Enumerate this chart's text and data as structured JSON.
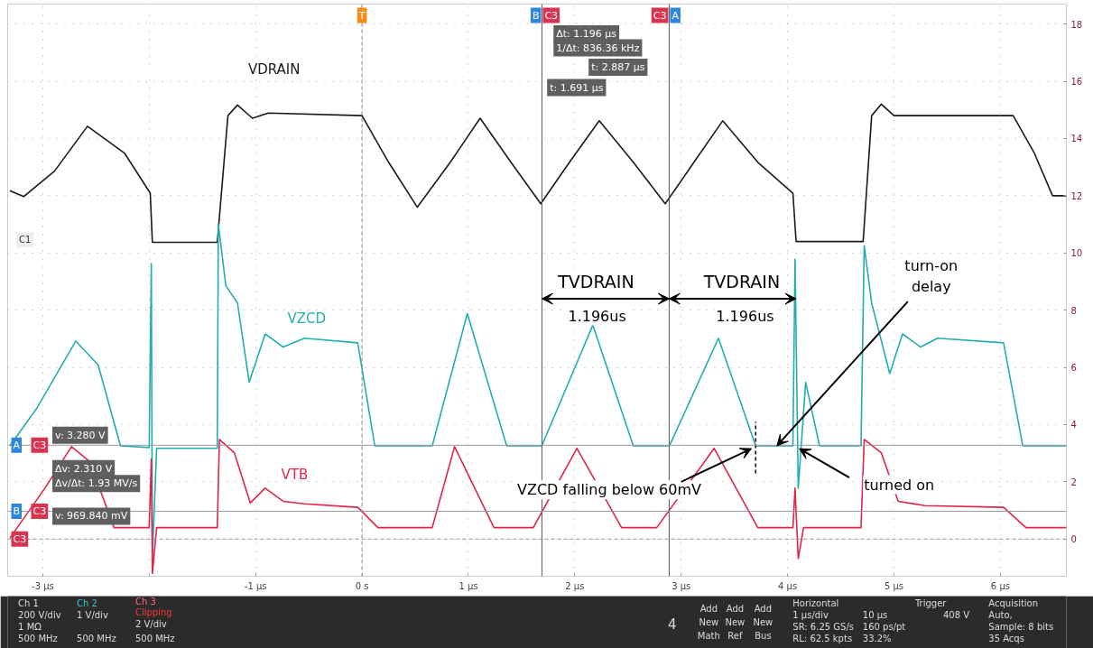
{
  "chart_data": {
    "type": "line",
    "xlim": [
      -3.33,
      6.62
    ],
    "ylim": [
      -1.3,
      18.7
    ],
    "xticks": [
      {
        "value": -3,
        "label": "-3 µs"
      },
      {
        "value": -2,
        "label": null
      },
      {
        "value": -1,
        "label": "-1 µs"
      },
      {
        "value": 0,
        "label": "0 s"
      },
      {
        "value": 1,
        "label": "1 µs"
      },
      {
        "value": 2,
        "label": "2 µs"
      },
      {
        "value": 3,
        "label": "3 µs"
      },
      {
        "value": 4,
        "label": "4 µs"
      },
      {
        "value": 5,
        "label": "5 µs"
      },
      {
        "value": 6,
        "label": "6 µs"
      }
    ],
    "yticks": [
      0,
      2,
      4,
      6,
      8,
      10,
      12,
      14,
      16,
      18
    ],
    "grid": true,
    "series": [
      {
        "name": "VDRAIN",
        "color": "#1a1a1a",
        "x": [
          -3.31,
          -3.18,
          -2.89,
          -2.58,
          -2.23,
          -1.99,
          -1.97,
          -1.36,
          -1.26,
          -1.17,
          -1.03,
          -0.88,
          0,
          0.25,
          0.52,
          0.83,
          1.11,
          1.4,
          1.68,
          1.95,
          2.23,
          2.55,
          2.85,
          3.12,
          3.39,
          3.72,
          4.05,
          4.08,
          4.71,
          4.79,
          4.88,
          5.0,
          6.12,
          6.32,
          6.49,
          6.62
        ],
        "values": [
          12.18,
          11.97,
          12.86,
          14.43,
          13.48,
          12.09,
          10.37,
          10.37,
          14.8,
          15.17,
          14.71,
          14.89,
          14.8,
          13.17,
          11.6,
          13.17,
          14.71,
          13.17,
          11.72,
          13.17,
          14.62,
          13.17,
          11.72,
          13.17,
          14.62,
          13.17,
          12.09,
          10.4,
          10.4,
          14.8,
          15.2,
          14.8,
          14.8,
          13.48,
          12.0,
          12.0
        ]
      },
      {
        "name": "VZCD",
        "color": "#22aeb0",
        "x": [
          -3.31,
          -3.06,
          -2.69,
          -2.48,
          -2.27,
          -2.0,
          -1.98,
          -1.97,
          -1.93,
          -1.36,
          -1.35,
          -1.28,
          -1.17,
          -1.06,
          -0.91,
          -0.74,
          -0.54,
          -0.04,
          0.12,
          0.66,
          0.99,
          1.36,
          1.69,
          2.17,
          2.55,
          2.89,
          3.35,
          3.7,
          4.05,
          4.07,
          4.1,
          4.17,
          4.3,
          4.69,
          4.72,
          4.79,
          4.96,
          5.08,
          5.25,
          5.41,
          6.03,
          6.21,
          6.62
        ],
        "values": [
          3.26,
          4.55,
          6.92,
          6.09,
          3.26,
          3.2,
          9.63,
          -0.68,
          3.17,
          3.17,
          11.02,
          8.86,
          8.25,
          5.48,
          7.17,
          6.71,
          7.02,
          6.86,
          3.26,
          3.26,
          7.88,
          3.26,
          3.26,
          7.48,
          3.26,
          3.26,
          7.02,
          3.26,
          3.26,
          9.78,
          1.78,
          5.48,
          3.26,
          3.26,
          10.25,
          8.25,
          5.78,
          7.17,
          6.71,
          7.02,
          6.86,
          3.26,
          3.26
        ]
      },
      {
        "name": "VTB",
        "color": "#e0244a",
        "x": [
          -3.31,
          -2.98,
          -2.73,
          -2.56,
          -2.33,
          -2.0,
          -1.98,
          -1.97,
          -1.93,
          -1.36,
          -1.34,
          -1.2,
          -1.05,
          -0.91,
          -0.74,
          -0.54,
          -0.04,
          0.15,
          0.66,
          0.87,
          1.24,
          1.61,
          2.02,
          2.44,
          2.77,
          3.31,
          3.72,
          4.05,
          4.07,
          4.1,
          4.15,
          4.69,
          4.72,
          4.88,
          5.04,
          5.29,
          6.03,
          6.24,
          6.62
        ],
        "values": [
          0.03,
          1.78,
          3.23,
          2.71,
          0.4,
          0.4,
          2.8,
          -1.2,
          0.4,
          0.4,
          3.48,
          3.02,
          1.26,
          1.78,
          1.32,
          1.23,
          1.11,
          0.4,
          0.4,
          3.23,
          0.4,
          0.4,
          3.17,
          0.4,
          0.4,
          3.17,
          0.4,
          0.4,
          1.78,
          -0.68,
          0.4,
          0.4,
          3.48,
          3.02,
          1.32,
          1.17,
          1.11,
          0.4,
          0.4
        ]
      }
    ],
    "ref_lines": [
      {
        "axis": "x",
        "value": 1.691,
        "label": "B C3",
        "color": "#555555"
      },
      {
        "axis": "x",
        "value": 2.887,
        "label": "C3 A",
        "color": "#555555"
      },
      {
        "axis": "y",
        "value": 3.28,
        "label": "A C3",
        "color": "#999999"
      },
      {
        "axis": "y",
        "value": 0.96984,
        "label": "B C3",
        "color": "#999999"
      },
      {
        "axis": "x",
        "value": 0,
        "label": "T",
        "color": "#888888",
        "line_style": "dashed"
      },
      {
        "axis": "y",
        "value": 0,
        "label": "C3",
        "color": "#999999",
        "line_style": "dashed"
      },
      {
        "axis": "x",
        "value": 3.7,
        "color": "#000000",
        "line_style": "dashed"
      }
    ],
    "annotations": [
      "Δt: 1.196 µs",
      "1/Δt: 836.36 kHz",
      "t: 2.887 µs",
      "t: 1.691 µs",
      "v: 3.280 V",
      "Δv: 2.310 V",
      "Δv/Δt: 1.93 MV/s",
      "v: 969.840 mV",
      "C1",
      "TVDRAIN",
      "1.196us",
      "TVDRAIN",
      "1.196us",
      {
        "text": "turn-on delay",
        "x": 3.9,
        "y": 3.26
      },
      {
        "text": "VZCD falling below 60mV",
        "x": 3.7,
        "y": 3.26
      },
      {
        "text": "turned on",
        "x": 4.08,
        "y": 3.26
      },
      "Ch 1",
      "200 V/div",
      "1 MΩ",
      "500 MHz",
      "Ch 2",
      "1 V/div",
      "500 MHz",
      "Ch 3",
      "Clipping",
      "2 V/div",
      "500 MHz",
      "4",
      "Add",
      "New",
      "Math",
      "Add",
      "New",
      "Ref",
      "Add",
      "New",
      "Bus",
      "Horizontal",
      "1 µs/div",
      "10 µs",
      "SR: 6.25 GS/s",
      "160 ps/pt",
      "RL: 62.5 kpts",
      "33.2%",
      "Trigger",
      "408 V",
      "Acquisition",
      "Auto,",
      "Sample: 8 bits",
      "35 Acqs"
    ]
  }
}
